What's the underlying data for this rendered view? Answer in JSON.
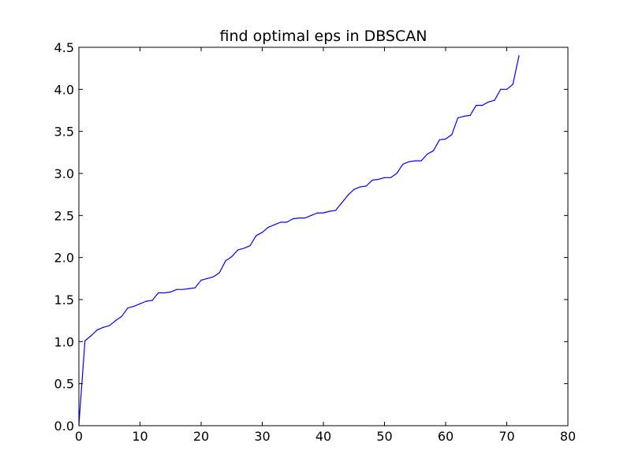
{
  "chart_data": {
    "type": "line",
    "title": "find optimal eps in DBSCAN",
    "xlabel": "",
    "ylabel": "",
    "xlim": [
      0,
      80
    ],
    "ylim": [
      0,
      4.5
    ],
    "xticks": [
      0,
      10,
      20,
      30,
      40,
      50,
      60,
      70,
      80
    ],
    "xtick_labels": [
      "0",
      "10",
      "20",
      "30",
      "40",
      "50",
      "60",
      "70",
      "80"
    ],
    "yticks": [
      0,
      0.5,
      1.0,
      1.5,
      2.0,
      2.5,
      3.0,
      3.5,
      4.0,
      4.5
    ],
    "ytick_labels": [
      "0.0",
      "0.5",
      "1.0",
      "1.5",
      "2.0",
      "2.5",
      "3.0",
      "3.5",
      "4.0",
      "4.5"
    ],
    "grid": false,
    "legend": "none",
    "series": [
      {
        "color": "#0000ff",
        "x": [
          0,
          1,
          2,
          3,
          4,
          5,
          6,
          7,
          8,
          9,
          10,
          11,
          12,
          13,
          14,
          15,
          16,
          17,
          18,
          19,
          20,
          21,
          22,
          23,
          24,
          25,
          26,
          27,
          28,
          29,
          30,
          31,
          32,
          33,
          34,
          35,
          36,
          37,
          38,
          39,
          40,
          41,
          42,
          43,
          44,
          45,
          46,
          47,
          48,
          49,
          50,
          51,
          52,
          53,
          54,
          55,
          56,
          57,
          58,
          59,
          60,
          61,
          62,
          63,
          64,
          65,
          66,
          67,
          68,
          69,
          70,
          71,
          72
        ],
        "y": [
          0.01,
          1.01,
          1.07,
          1.14,
          1.17,
          1.19,
          1.25,
          1.3,
          1.4,
          1.42,
          1.45,
          1.48,
          1.49,
          1.58,
          1.58,
          1.59,
          1.62,
          1.62,
          1.63,
          1.64,
          1.73,
          1.75,
          1.77,
          1.82,
          1.96,
          2.01,
          2.09,
          2.11,
          2.14,
          2.26,
          2.3,
          2.36,
          2.39,
          2.42,
          2.42,
          2.46,
          2.47,
          2.47,
          2.5,
          2.53,
          2.53,
          2.55,
          2.56,
          2.65,
          2.74,
          2.81,
          2.84,
          2.85,
          2.92,
          2.93,
          2.95,
          2.95,
          3.0,
          3.11,
          3.14,
          3.15,
          3.15,
          3.23,
          3.27,
          3.4,
          3.41,
          3.46,
          3.66,
          3.68,
          3.69,
          3.81,
          3.81,
          3.85,
          3.87,
          4.0,
          4.0,
          4.06,
          4.4
        ]
      }
    ]
  }
}
